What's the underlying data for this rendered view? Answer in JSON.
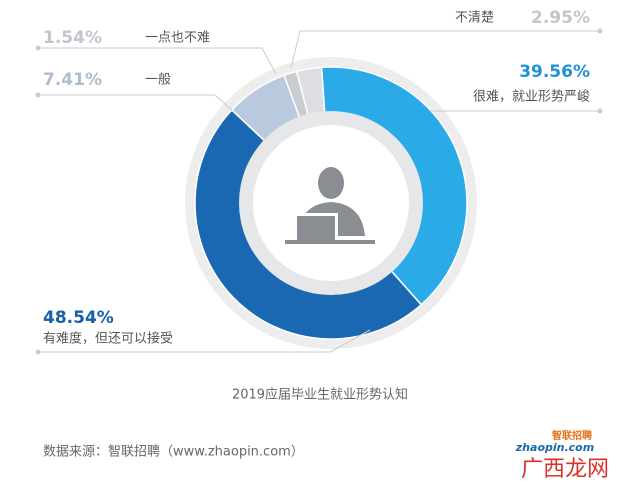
{
  "chart_data": {
    "type": "donut",
    "title": "2019应届毕业生就业形势认知",
    "source": "数据来源：智联招聘（www.zhaopin.com）",
    "categories": [
      "很难，就业形势严峻",
      "有难度，但还可以接受",
      "一般",
      "一点也不难",
      "不清楚"
    ],
    "values": [
      39.56,
      48.54,
      7.41,
      1.54,
      2.95
    ],
    "value_labels": [
      "39.56%",
      "48.54%",
      "7.41%",
      "1.54%",
      "2.95%"
    ],
    "colors": [
      "#2aaae6",
      "#1b68b2",
      "#b9cade",
      "#c9ccd1",
      "#dcdee1"
    ]
  },
  "logo": {
    "domain": "zhaopin.com",
    "name": "智联招聘"
  },
  "watermark": "广西龙网"
}
